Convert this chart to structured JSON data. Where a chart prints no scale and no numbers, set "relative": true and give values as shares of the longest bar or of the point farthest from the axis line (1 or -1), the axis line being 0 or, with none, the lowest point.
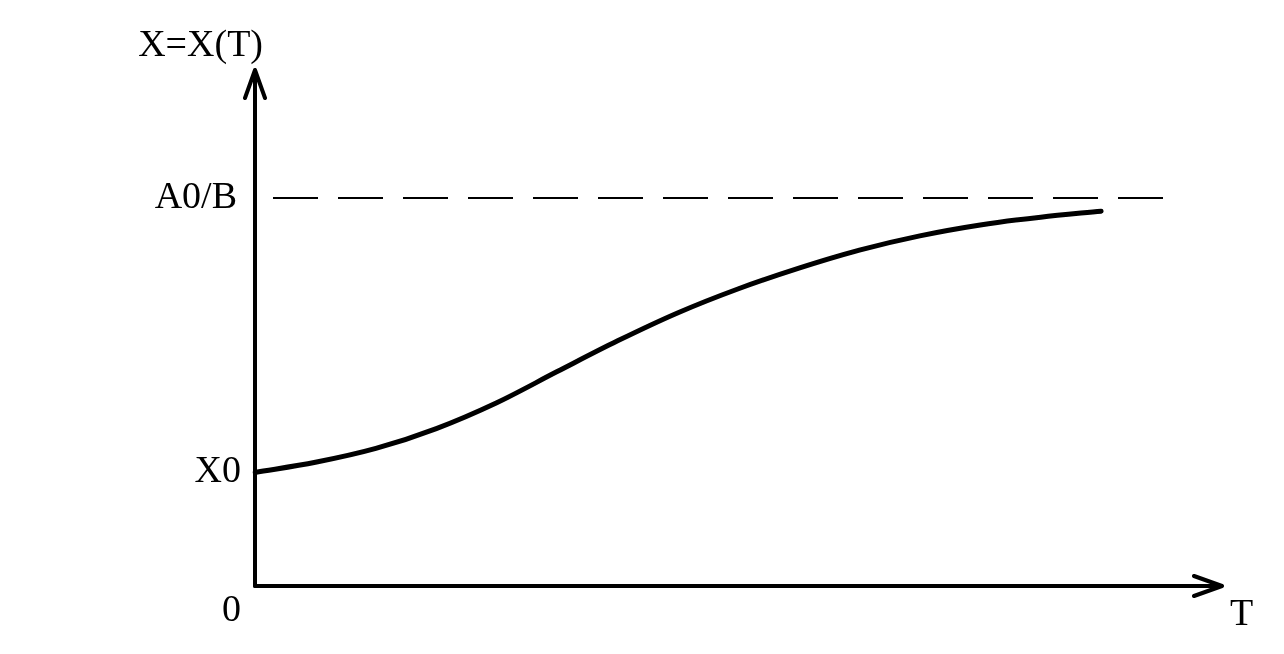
{
  "chart_data": {
    "type": "line",
    "relative": true,
    "xlabel": "T",
    "ylabel": "X=X(T)",
    "categories": [
      null,
      null,
      null,
      null,
      null,
      null,
      null,
      null,
      null,
      null,
      null,
      null,
      null,
      null,
      null,
      null,
      null
    ],
    "series": [
      {
        "color": "#000000",
        "values": [
          0.303,
          0.33,
          0.367,
          0.42,
          0.489,
          0.572,
          0.654,
          0.729,
          0.793,
          0.848,
          0.896,
          0.934,
          0.963,
          0.984,
          1,
          null,
          null
        ]
      }
    ],
    "ref_lines": [
      {
        "axis": "y",
        "value": 1.035,
        "label": "A0/B",
        "line_style": "dashed",
        "color": "#000000"
      }
    ],
    "annotations": [
      "X0",
      "0"
    ],
    "marker": "none",
    "line_style": "solid"
  }
}
